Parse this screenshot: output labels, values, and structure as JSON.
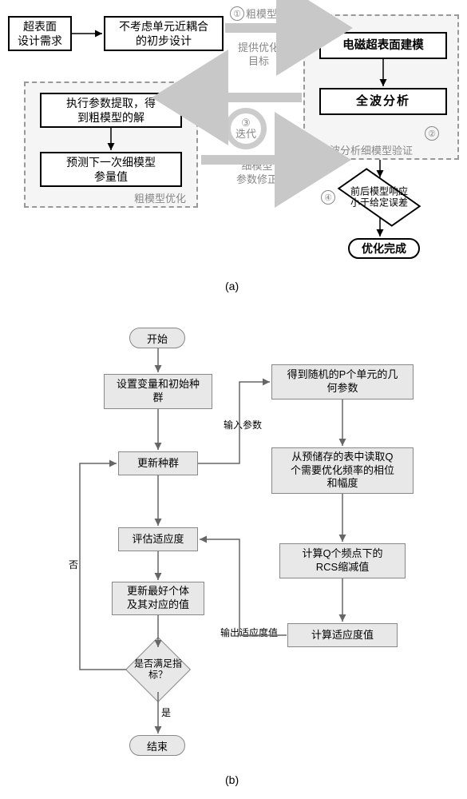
{
  "colors": {
    "bg": "#ffffff",
    "panel_bg": "#f5f5f5",
    "panel_border": "#999999",
    "box_border": "#000000",
    "gbox_bg": "#e8e8e8",
    "gbox_border": "#888888",
    "muted_text": "#888888",
    "arrow_thick": "#c8c8c8",
    "arrow_thin": "#666666"
  },
  "figA": {
    "label": "(a)",
    "nodes": {
      "n1": "超表面\n设计需求",
      "n2": "不考虑单元近耦合\n的初步设计",
      "n3": "电磁超表面建模",
      "n4": "全波分析",
      "n5": "执行参数提取，得\n到粗模型的解",
      "n6": "预测下一次细模型\n参量值",
      "decision": "前后模型响应\n小于给定误差",
      "done": "优化完成"
    },
    "panel_labels": {
      "right": "全波分析细模型验证",
      "left": "粗模型优化"
    },
    "annotations": {
      "step1": "①",
      "step1_text": "粗模型参量\n提供优化\n目标",
      "step2": "②",
      "step3": "③",
      "step3_text": "迭代",
      "step4": "④",
      "top_arrow": "粗模型参量",
      "mid_text": "细模型\n参数修正"
    }
  },
  "figB": {
    "label": "(b)",
    "nodes": {
      "start": "开始",
      "b1": "设置变量和初始种\n群",
      "b2": "更新种群",
      "b3": "评估适应度",
      "b4": "更新最好个体\n及其对应的值",
      "decision": "是否满足指\n标？",
      "end": "结束",
      "r1": "得到随机的P个单元的几\n何参数",
      "r2": "从预储存的表中读取Q\n个需要优化频率的相位\n和幅度",
      "r3": "计算Q个频点下的\nRCS缩减值",
      "r4": "计算适应度值"
    },
    "edge_labels": {
      "input": "输入参数",
      "output": "输出适应度值",
      "yes": "是",
      "no": "否"
    }
  },
  "style": {
    "font_size_box_a": 14,
    "font_size_box_b": 13,
    "line_width_thick": 12,
    "line_width_thin": 1.5
  }
}
